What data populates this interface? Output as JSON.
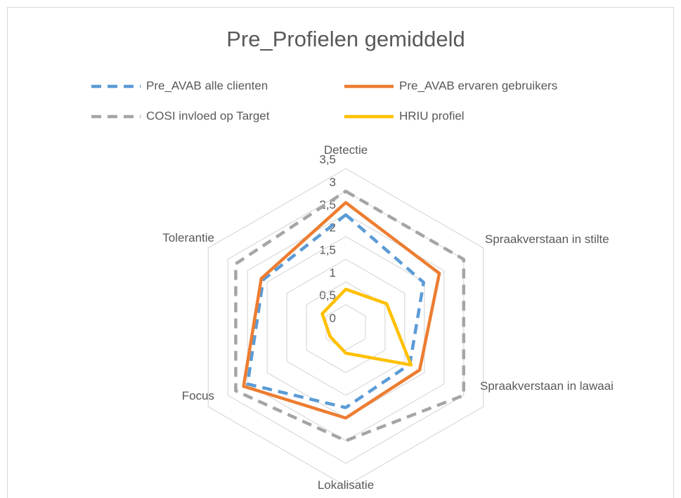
{
  "chart_data": {
    "type": "radar",
    "title": "Pre_Profielen gemiddeld",
    "categories": [
      "Detectie",
      "Spraakverstaan in stilte",
      "Spraakverstaan in lawaai",
      "Lokalisatie",
      "Focus",
      "Tolerantie"
    ],
    "series": [
      {
        "name": "Pre_AVAB alle clienten",
        "color": "#5b9bd5",
        "dashed": true,
        "values": [
          2.48,
          1.98,
          1.63,
          1.77,
          2.5,
          2.1
        ]
      },
      {
        "name": "Pre_AVAB ervaren gebruikers",
        "color": "#ed7d31",
        "dashed": false,
        "values": [
          2.75,
          2.38,
          1.88,
          2.0,
          2.6,
          2.15
        ]
      },
      {
        "name": "COSI invloed op Target",
        "color": "#a5a5a5",
        "dashed": true,
        "values": [
          3.0,
          3.0,
          3.0,
          2.5,
          2.8,
          2.8
        ]
      },
      {
        "name": "HRIU profiel",
        "color": "#ffc000",
        "dashed": false,
        "values": [
          0.84,
          1.04,
          1.66,
          0.57,
          0.4,
          0.6
        ]
      }
    ],
    "ylim": [
      0,
      3.5
    ],
    "yticks": [
      0,
      {
        "value": 0.5,
        "label": "0,5"
      },
      1,
      {
        "value": 1.5,
        "label": "1,5"
      },
      2,
      {
        "value": 2.5,
        "label": "2,5"
      },
      3,
      {
        "value": 3.5,
        "label": "3,5"
      }
    ],
    "grid": true,
    "legend": "top"
  }
}
